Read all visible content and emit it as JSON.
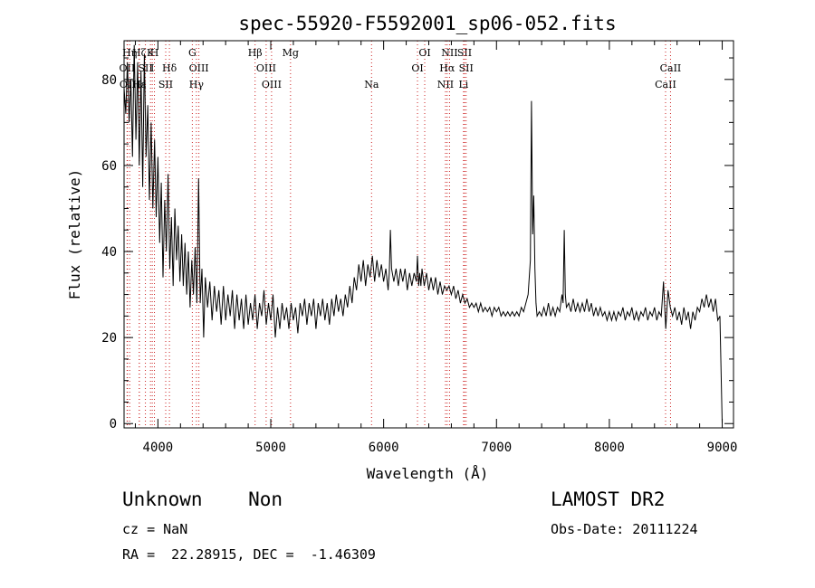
{
  "chart_data": {
    "type": "line",
    "title": "spec-55920-F5592001_sp06-052.fits",
    "xlabel": "Wavelength (Å)",
    "ylabel": "Flux (relative)",
    "xlim": [
      3700,
      9100
    ],
    "ylim": [
      -1,
      89
    ],
    "xticks": [
      4000,
      5000,
      6000,
      7000,
      8000,
      9000
    ],
    "yticks": [
      0,
      20,
      40,
      60,
      80
    ],
    "grid": false,
    "line_color": "#000000",
    "marker_color": "#cc2222",
    "series": [
      {
        "values": [
          [
            3700,
            78
          ],
          [
            3715,
            72
          ],
          [
            3730,
            84
          ],
          [
            3745,
            70
          ],
          [
            3760,
            80
          ],
          [
            3775,
            62
          ],
          [
            3790,
            88
          ],
          [
            3805,
            66
          ],
          [
            3820,
            84
          ],
          [
            3835,
            60
          ],
          [
            3850,
            82
          ],
          [
            3865,
            55
          ],
          [
            3880,
            86
          ],
          [
            3895,
            62
          ],
          [
            3910,
            74
          ],
          [
            3925,
            52
          ],
          [
            3940,
            70
          ],
          [
            3955,
            50
          ],
          [
            3970,
            66
          ],
          [
            3985,
            48
          ],
          [
            4000,
            62
          ],
          [
            4015,
            42
          ],
          [
            4030,
            56
          ],
          [
            4045,
            34
          ],
          [
            4060,
            52
          ],
          [
            4075,
            40
          ],
          [
            4090,
            58
          ],
          [
            4105,
            36
          ],
          [
            4120,
            48
          ],
          [
            4135,
            32
          ],
          [
            4150,
            50
          ],
          [
            4165,
            38
          ],
          [
            4180,
            46
          ],
          [
            4195,
            33
          ],
          [
            4210,
            44
          ],
          [
            4225,
            32
          ],
          [
            4240,
            42
          ],
          [
            4255,
            30
          ],
          [
            4270,
            40
          ],
          [
            4285,
            27
          ],
          [
            4300,
            38
          ],
          [
            4315,
            30
          ],
          [
            4330,
            41
          ],
          [
            4345,
            28
          ],
          [
            4360,
            57
          ],
          [
            4375,
            28
          ],
          [
            4390,
            36
          ],
          [
            4405,
            20
          ],
          [
            4420,
            34
          ],
          [
            4440,
            27
          ],
          [
            4460,
            33
          ],
          [
            4480,
            24
          ],
          [
            4500,
            32
          ],
          [
            4520,
            26
          ],
          [
            4540,
            31
          ],
          [
            4560,
            23
          ],
          [
            4580,
            32
          ],
          [
            4600,
            24
          ],
          [
            4620,
            30
          ],
          [
            4640,
            25
          ],
          [
            4660,
            31
          ],
          [
            4680,
            22
          ],
          [
            4700,
            30
          ],
          [
            4720,
            24
          ],
          [
            4740,
            29
          ],
          [
            4760,
            22
          ],
          [
            4780,
            30
          ],
          [
            4800,
            23
          ],
          [
            4820,
            28
          ],
          [
            4840,
            24
          ],
          [
            4860,
            30
          ],
          [
            4880,
            22
          ],
          [
            4900,
            28
          ],
          [
            4920,
            25
          ],
          [
            4940,
            31
          ],
          [
            4960,
            23
          ],
          [
            4980,
            28
          ],
          [
            5000,
            24
          ],
          [
            5020,
            30
          ],
          [
            5040,
            20
          ],
          [
            5060,
            27
          ],
          [
            5080,
            22
          ],
          [
            5100,
            28
          ],
          [
            5120,
            24
          ],
          [
            5140,
            27
          ],
          [
            5160,
            22
          ],
          [
            5180,
            28
          ],
          [
            5200,
            24
          ],
          [
            5220,
            27
          ],
          [
            5240,
            21
          ],
          [
            5260,
            28
          ],
          [
            5280,
            25
          ],
          [
            5300,
            29
          ],
          [
            5320,
            23
          ],
          [
            5340,
            28
          ],
          [
            5360,
            25
          ],
          [
            5380,
            29
          ],
          [
            5400,
            22
          ],
          [
            5420,
            28
          ],
          [
            5440,
            25
          ],
          [
            5460,
            29
          ],
          [
            5480,
            24
          ],
          [
            5500,
            28
          ],
          [
            5520,
            23
          ],
          [
            5540,
            29
          ],
          [
            5560,
            25
          ],
          [
            5580,
            30
          ],
          [
            5600,
            26
          ],
          [
            5620,
            29
          ],
          [
            5640,
            25
          ],
          [
            5660,
            30
          ],
          [
            5680,
            27
          ],
          [
            5700,
            32
          ],
          [
            5720,
            28
          ],
          [
            5740,
            34
          ],
          [
            5760,
            31
          ],
          [
            5780,
            37
          ],
          [
            5800,
            33
          ],
          [
            5820,
            38
          ],
          [
            5840,
            32
          ],
          [
            5860,
            37
          ],
          [
            5880,
            34
          ],
          [
            5900,
            39
          ],
          [
            5920,
            33
          ],
          [
            5940,
            38
          ],
          [
            5960,
            34
          ],
          [
            5980,
            37
          ],
          [
            6000,
            33
          ],
          [
            6020,
            36
          ],
          [
            6040,
            31
          ],
          [
            6050,
            35
          ],
          [
            6060,
            45
          ],
          [
            6070,
            36
          ],
          [
            6090,
            33
          ],
          [
            6110,
            36
          ],
          [
            6130,
            32
          ],
          [
            6150,
            36
          ],
          [
            6170,
            33
          ],
          [
            6190,
            36
          ],
          [
            6210,
            31
          ],
          [
            6230,
            35
          ],
          [
            6250,
            32
          ],
          [
            6270,
            35
          ],
          [
            6290,
            33
          ],
          [
            6300,
            39
          ],
          [
            6310,
            32
          ],
          [
            6320,
            35
          ],
          [
            6330,
            32
          ],
          [
            6340,
            36
          ],
          [
            6360,
            32
          ],
          [
            6380,
            35
          ],
          [
            6400,
            31
          ],
          [
            6420,
            34
          ],
          [
            6440,
            31
          ],
          [
            6460,
            34
          ],
          [
            6480,
            30
          ],
          [
            6500,
            33
          ],
          [
            6520,
            30
          ],
          [
            6540,
            32
          ],
          [
            6560,
            31
          ],
          [
            6580,
            32
          ],
          [
            6600,
            30
          ],
          [
            6620,
            32
          ],
          [
            6640,
            29
          ],
          [
            6660,
            31
          ],
          [
            6680,
            28
          ],
          [
            6700,
            30
          ],
          [
            6720,
            28
          ],
          [
            6740,
            29
          ],
          [
            6760,
            27
          ],
          [
            6780,
            28
          ],
          [
            6800,
            27
          ],
          [
            6820,
            28
          ],
          [
            6840,
            26
          ],
          [
            6860,
            28
          ],
          [
            6880,
            26
          ],
          [
            6900,
            27
          ],
          [
            6920,
            26
          ],
          [
            6940,
            27
          ],
          [
            6960,
            25
          ],
          [
            6980,
            27
          ],
          [
            7000,
            26
          ],
          [
            7020,
            27
          ],
          [
            7040,
            25
          ],
          [
            7060,
            26
          ],
          [
            7080,
            25
          ],
          [
            7100,
            26
          ],
          [
            7120,
            25
          ],
          [
            7140,
            26
          ],
          [
            7160,
            25
          ],
          [
            7180,
            26
          ],
          [
            7200,
            25
          ],
          [
            7220,
            27
          ],
          [
            7240,
            26
          ],
          [
            7260,
            28
          ],
          [
            7280,
            30
          ],
          [
            7300,
            38
          ],
          [
            7310,
            75
          ],
          [
            7320,
            44
          ],
          [
            7330,
            53
          ],
          [
            7340,
            36
          ],
          [
            7350,
            28
          ],
          [
            7360,
            25
          ],
          [
            7380,
            26
          ],
          [
            7400,
            25
          ],
          [
            7420,
            27
          ],
          [
            7440,
            25
          ],
          [
            7460,
            28
          ],
          [
            7480,
            25
          ],
          [
            7500,
            27
          ],
          [
            7520,
            25
          ],
          [
            7540,
            27
          ],
          [
            7560,
            26
          ],
          [
            7580,
            30
          ],
          [
            7590,
            28
          ],
          [
            7600,
            45
          ],
          [
            7610,
            30
          ],
          [
            7620,
            27
          ],
          [
            7640,
            28
          ],
          [
            7660,
            26
          ],
          [
            7680,
            29
          ],
          [
            7700,
            26
          ],
          [
            7720,
            28
          ],
          [
            7740,
            26
          ],
          [
            7760,
            28
          ],
          [
            7780,
            26
          ],
          [
            7800,
            29
          ],
          [
            7820,
            26
          ],
          [
            7840,
            28
          ],
          [
            7860,
            25
          ],
          [
            7880,
            27
          ],
          [
            7900,
            25
          ],
          [
            7920,
            27
          ],
          [
            7940,
            25
          ],
          [
            7960,
            26
          ],
          [
            7980,
            24
          ],
          [
            8000,
            26
          ],
          [
            8020,
            24
          ],
          [
            8040,
            26
          ],
          [
            8060,
            24
          ],
          [
            8080,
            26
          ],
          [
            8100,
            25
          ],
          [
            8120,
            27
          ],
          [
            8140,
            24
          ],
          [
            8160,
            26
          ],
          [
            8180,
            25
          ],
          [
            8200,
            27
          ],
          [
            8220,
            24
          ],
          [
            8240,
            26
          ],
          [
            8260,
            24
          ],
          [
            8280,
            26
          ],
          [
            8300,
            25
          ],
          [
            8320,
            27
          ],
          [
            8340,
            24
          ],
          [
            8360,
            26
          ],
          [
            8380,
            25
          ],
          [
            8400,
            27
          ],
          [
            8420,
            24
          ],
          [
            8440,
            26
          ],
          [
            8460,
            25
          ],
          [
            8480,
            33
          ],
          [
            8500,
            22
          ],
          [
            8520,
            31
          ],
          [
            8540,
            27
          ],
          [
            8560,
            25
          ],
          [
            8580,
            27
          ],
          [
            8600,
            24
          ],
          [
            8620,
            26
          ],
          [
            8640,
            23
          ],
          [
            8660,
            27
          ],
          [
            8680,
            24
          ],
          [
            8700,
            26
          ],
          [
            8720,
            22
          ],
          [
            8740,
            26
          ],
          [
            8760,
            24
          ],
          [
            8780,
            27
          ],
          [
            8800,
            26
          ],
          [
            8820,
            29
          ],
          [
            8840,
            27
          ],
          [
            8860,
            30
          ],
          [
            8880,
            27
          ],
          [
            8900,
            29
          ],
          [
            8920,
            26
          ],
          [
            8940,
            29
          ],
          [
            8960,
            24
          ],
          [
            8980,
            25
          ],
          [
            9000,
            0
          ]
        ]
      }
    ],
    "lines": [
      {
        "label": "OII",
        "x": 3727,
        "row": 2
      },
      {
        "label": "OII",
        "x": 3730,
        "row": 3
      },
      {
        "label": "Hη",
        "x": 3750,
        "row": 1
      },
      {
        "label": "Hζ",
        "x": 3835,
        "row": 1
      },
      {
        "label": "SII",
        "x": 3889,
        "row": 2
      },
      {
        "label": "Hε",
        "x": 3835,
        "row": 3
      },
      {
        "label": "K",
        "x": 3934,
        "row": 1
      },
      {
        "label": "H",
        "x": 3969,
        "row": 1
      },
      {
        "label": "I",
        "x": 3950,
        "row": 2
      },
      {
        "label": "Hδ",
        "x": 4102,
        "row": 2
      },
      {
        "label": "SII",
        "x": 4069,
        "row": 3
      },
      {
        "label": "G",
        "x": 4305,
        "row": 1
      },
      {
        "label": "OIII",
        "x": 4363,
        "row": 2
      },
      {
        "label": "Hγ",
        "x": 4341,
        "row": 3
      },
      {
        "label": "Hβ",
        "x": 4861,
        "row": 1
      },
      {
        "label": "OIII",
        "x": 4959,
        "row": 2
      },
      {
        "label": "OIII",
        "x": 5007,
        "row": 3
      },
      {
        "label": "Mg",
        "x": 5175,
        "row": 1
      },
      {
        "label": "Na",
        "x": 5893,
        "row": 3
      },
      {
        "label": "OI",
        "x": 6300,
        "row": 2
      },
      {
        "label": "OI",
        "x": 6364,
        "row": 1
      },
      {
        "label": "NII",
        "x": 6548,
        "row": 3
      },
      {
        "label": "Hα",
        "x": 6563,
        "row": 2
      },
      {
        "label": "NII",
        "x": 6584,
        "row": 1
      },
      {
        "label": "SII",
        "x": 6717,
        "row": 1
      },
      {
        "label": "SII",
        "x": 6731,
        "row": 2
      },
      {
        "label": "Li",
        "x": 6708,
        "row": 3
      },
      {
        "label": "CaII",
        "x": 8498,
        "row": 3
      },
      {
        "label": "CaII",
        "x": 8542,
        "row": 2
      }
    ]
  },
  "info": {
    "classification": "Unknown    Non",
    "survey": "LAMOST DR2",
    "redshift": "cz = NaN",
    "obs_date": "Obs-Date: 20111224",
    "coords": "RA =  22.28915, DEC =  -1.46309"
  }
}
